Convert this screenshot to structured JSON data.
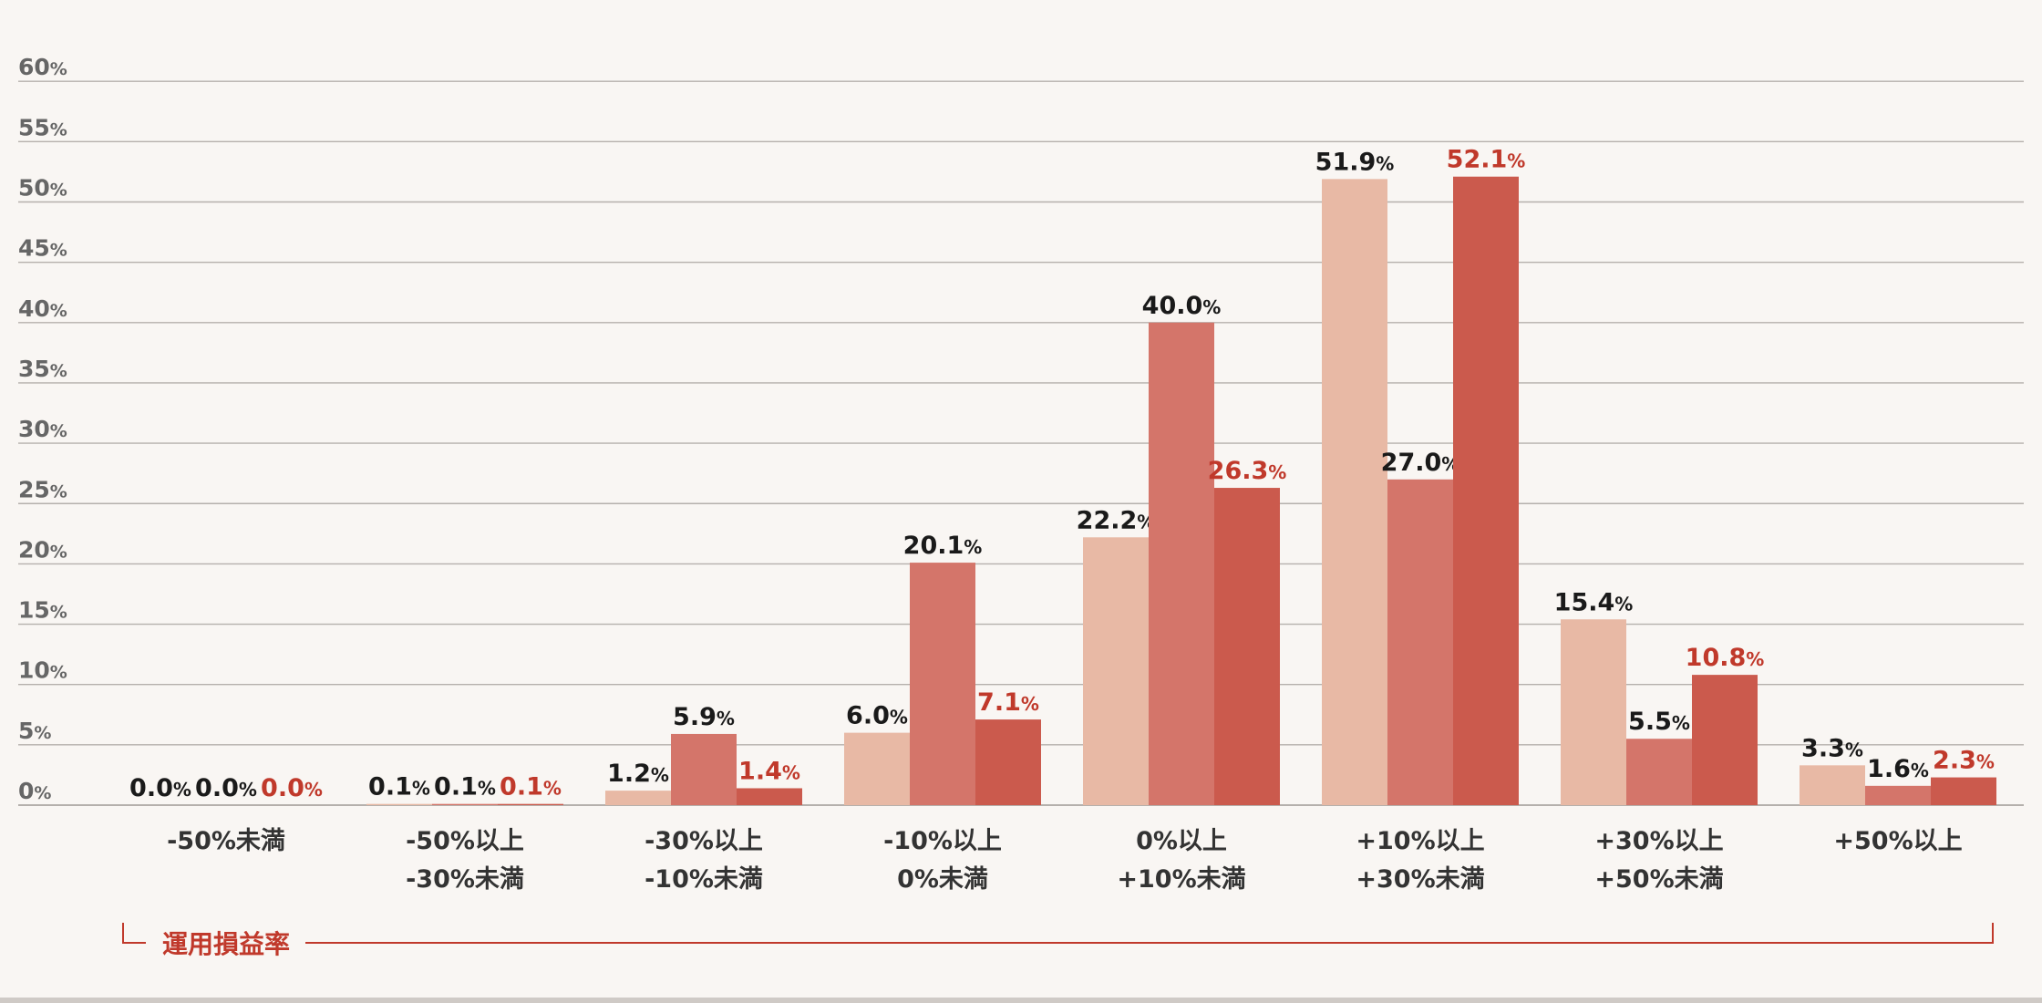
{
  "chart_data": {
    "type": "bar",
    "categories": [
      [
        "-50%未満"
      ],
      [
        "-50%以上",
        "-30%未満"
      ],
      [
        "-30%以上",
        "-10%未満"
      ],
      [
        "-10%以上",
        "0%未満"
      ],
      [
        "0%以上",
        "+10%未満"
      ],
      [
        "+10%以上",
        "+30%未満"
      ],
      [
        "+30%以上",
        "+50%未満"
      ],
      [
        "+50%以上"
      ]
    ],
    "series": [
      {
        "values": [
          0.0,
          0.1,
          1.2,
          6.0,
          22.2,
          51.9,
          15.4,
          3.3
        ],
        "labels": [
          "0.0",
          "0.1",
          "1.2",
          "6.0",
          "22.2",
          "51.9",
          "15.4",
          "3.3"
        ],
        "color": "#e8b9a5",
        "label_color": "#1a1a1a"
      },
      {
        "values": [
          0.0,
          0.1,
          5.9,
          20.1,
          40.0,
          27.0,
          5.5,
          1.6
        ],
        "labels": [
          "0.0",
          "0.1",
          "5.9",
          "20.1",
          "40.0",
          "27.0",
          "5.5",
          "1.6"
        ],
        "color": "#d4756a",
        "label_color": "#1a1a1a"
      },
      {
        "values": [
          0.0,
          0.1,
          1.4,
          7.1,
          26.3,
          52.1,
          10.8,
          2.3
        ],
        "labels": [
          "0.0",
          "0.1",
          "1.4",
          "7.1",
          "26.3",
          "52.1",
          "10.8",
          "2.3"
        ],
        "color": "#cb5a4d",
        "label_color": "#c0392b"
      }
    ],
    "value_unit": "%",
    "ylim": [
      0,
      60
    ],
    "yticks": [
      0,
      5,
      10,
      15,
      20,
      25,
      30,
      35,
      40,
      45,
      50,
      55,
      60
    ],
    "ytick_unit": "%",
    "xlabel": "運用損益率",
    "xlabel_color": "#c0392b",
    "grid": true,
    "grid_color": "#b5b0ac",
    "tick_color": "#666666",
    "background": "#f9f6f3"
  }
}
